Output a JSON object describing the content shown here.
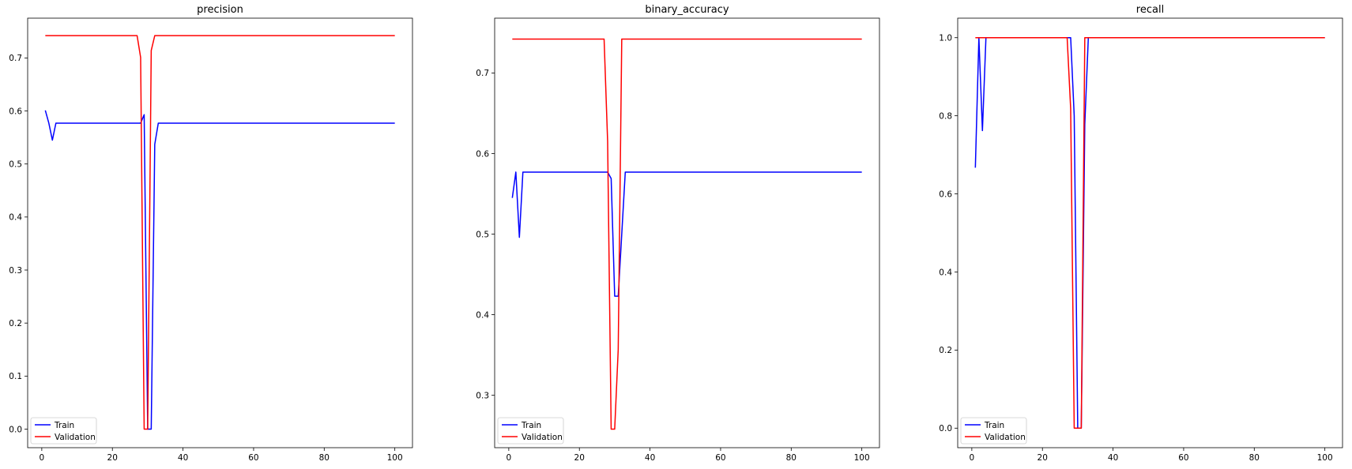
{
  "colors": {
    "train": "#0000ff",
    "validation": "#ff0000",
    "axis": "#000000",
    "legend_border": "#cccccc"
  },
  "chart_data": [
    {
      "type": "line",
      "title": "precision",
      "xlabel": "",
      "ylabel": "",
      "xlim": [
        -4.0,
        105.0
      ],
      "ylim": [
        -0.035,
        0.775
      ],
      "xticks": [
        0,
        20,
        40,
        60,
        80,
        100
      ],
      "yticks": [
        0.0,
        0.1,
        0.2,
        0.3,
        0.4,
        0.5,
        0.6,
        0.7
      ],
      "ytick_labels": [
        "0.0",
        "0.1",
        "0.2",
        "0.3",
        "0.4",
        "0.5",
        "0.6",
        "0.7"
      ],
      "legend": {
        "position": "lower-left",
        "entries": [
          "Train",
          "Validation"
        ]
      },
      "series": [
        {
          "name": "Train",
          "color": "#0000ff",
          "x": [
            1,
            2,
            3,
            4,
            27,
            28,
            29,
            30,
            31,
            32,
            33,
            100
          ],
          "y": [
            0.601,
            0.577,
            0.545,
            0.577,
            0.577,
            0.577,
            0.593,
            0.0,
            0.0,
            0.537,
            0.577,
            0.577
          ]
        },
        {
          "name": "Validation",
          "color": "#ff0000",
          "x": [
            1,
            27,
            28,
            29,
            30,
            31,
            32,
            100
          ],
          "y": [
            0.742,
            0.742,
            0.701,
            0.0,
            0.0,
            0.714,
            0.742,
            0.742
          ]
        }
      ]
    },
    {
      "type": "line",
      "title": "binary_accuracy",
      "xlabel": "",
      "ylabel": "",
      "xlim": [
        -4.0,
        105.0
      ],
      "ylim": [
        0.235,
        0.768
      ],
      "xticks": [
        0,
        20,
        40,
        60,
        80,
        100
      ],
      "yticks": [
        0.3,
        0.4,
        0.5,
        0.6,
        0.7
      ],
      "ytick_labels": [
        "0.3",
        "0.4",
        "0.5",
        "0.6",
        "0.7"
      ],
      "legend": {
        "position": "lower-left",
        "entries": [
          "Train",
          "Validation"
        ]
      },
      "series": [
        {
          "name": "Train",
          "color": "#0000ff",
          "x": [
            1,
            2,
            3,
            4,
            27,
            28,
            29,
            30,
            31,
            32,
            33,
            100
          ],
          "y": [
            0.545,
            0.577,
            0.496,
            0.577,
            0.577,
            0.577,
            0.569,
            0.423,
            0.423,
            0.5,
            0.577,
            0.577
          ]
        },
        {
          "name": "Validation",
          "color": "#ff0000",
          "x": [
            1,
            27,
            28,
            29,
            30,
            31,
            32,
            100
          ],
          "y": [
            0.742,
            0.742,
            0.615,
            0.258,
            0.258,
            0.357,
            0.742,
            0.742
          ]
        }
      ]
    },
    {
      "type": "line",
      "title": "recall",
      "xlabel": "",
      "ylabel": "",
      "xlim": [
        -4.0,
        105.0
      ],
      "ylim": [
        -0.05,
        1.05
      ],
      "xticks": [
        0,
        20,
        40,
        60,
        80,
        100
      ],
      "yticks": [
        0.0,
        0.2,
        0.4,
        0.6,
        0.8,
        1.0
      ],
      "ytick_labels": [
        "0.0",
        "0.2",
        "0.4",
        "0.6",
        "0.8",
        "1.0"
      ],
      "legend": {
        "position": "lower-left",
        "entries": [
          "Train",
          "Validation"
        ]
      },
      "series": [
        {
          "name": "Train",
          "color": "#0000ff",
          "x": [
            1,
            2,
            3,
            4,
            27,
            28,
            29,
            30,
            31,
            32,
            33,
            100
          ],
          "y": [
            0.667,
            1.0,
            0.762,
            1.0,
            1.0,
            1.0,
            0.8,
            0.0,
            0.0,
            0.778,
            1.0,
            1.0
          ]
        },
        {
          "name": "Validation",
          "color": "#ff0000",
          "x": [
            1,
            27,
            28,
            29,
            30,
            31,
            32,
            100
          ],
          "y": [
            1.0,
            1.0,
            0.818,
            0.0,
            0.0,
            0.0,
            1.0,
            1.0
          ]
        }
      ]
    }
  ]
}
